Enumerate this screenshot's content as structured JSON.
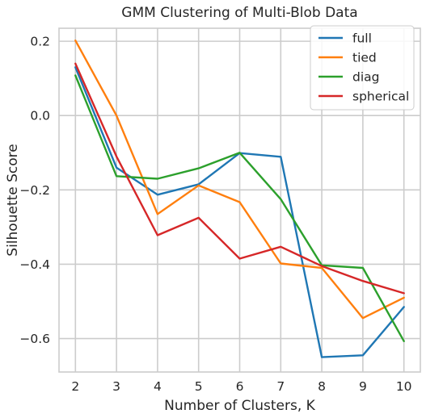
{
  "chart_data": {
    "type": "line",
    "title": "GMM Clustering of Multi-Blob Data",
    "xlabel": "Number of Clusters, K",
    "ylabel": "Silhouette Score",
    "x": [
      2,
      3,
      4,
      5,
      6,
      7,
      8,
      9,
      10
    ],
    "xlim": [
      1.6,
      10.4
    ],
    "ylim": [
      -0.69,
      0.235
    ],
    "xticks": [
      "2",
      "3",
      "4",
      "5",
      "6",
      "7",
      "8",
      "9",
      "10"
    ],
    "yticks": [
      0.2,
      0.0,
      -0.2,
      -0.4,
      -0.6
    ],
    "ytick_labels": [
      "0.2",
      "0.0",
      "−0.2",
      "−0.4",
      "−0.6"
    ],
    "grid": true,
    "legend_position": "top-right",
    "series": [
      {
        "name": "full",
        "color": "#1f77b4",
        "values": [
          0.13,
          -0.14,
          -0.213,
          -0.185,
          -0.101,
          -0.111,
          -0.65,
          -0.645,
          -0.515
        ]
      },
      {
        "name": "tied",
        "color": "#ff7f0e",
        "values": [
          0.202,
          0.0,
          -0.265,
          -0.188,
          -0.233,
          -0.398,
          -0.41,
          -0.545,
          -0.49
        ]
      },
      {
        "name": "diag",
        "color": "#2ca02c",
        "values": [
          0.108,
          -0.163,
          -0.17,
          -0.142,
          -0.1,
          -0.225,
          -0.403,
          -0.41,
          -0.607
        ]
      },
      {
        "name": "spherical",
        "color": "#d62728",
        "values": [
          0.14,
          -0.11,
          -0.322,
          -0.275,
          -0.385,
          -0.353,
          -0.405,
          -0.445,
          -0.478
        ]
      }
    ]
  }
}
